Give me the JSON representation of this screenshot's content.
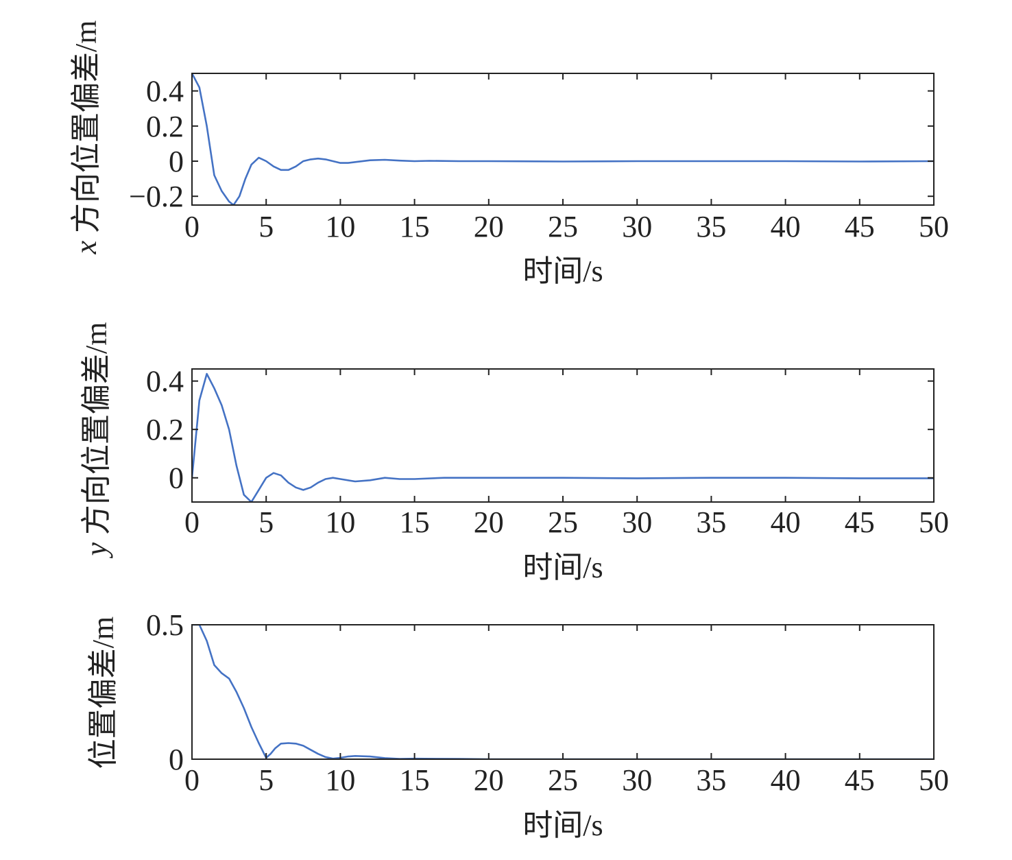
{
  "chart_data": [
    {
      "type": "line",
      "xlabel": "时间/s",
      "ylabel_var": "x",
      "ylabel": "方向位置偏差/m",
      "xlim": [
        0,
        50
      ],
      "ylim": [
        -0.25,
        0.5
      ],
      "xticks": [
        0,
        5,
        10,
        15,
        20,
        25,
        30,
        35,
        40,
        45,
        50
      ],
      "yticks": [
        -0.2,
        0,
        0.2,
        0.4
      ],
      "ytick_labels": [
        "−0.2",
        "0",
        "0.2",
        "0.4"
      ],
      "grid": false,
      "color": "#4472c4",
      "series": [
        {
          "x": [
            0,
            0.5,
            1,
            1.5,
            2,
            2.5,
            2.8,
            3.2,
            3.6,
            4,
            4.5,
            5,
            5.5,
            6,
            6.5,
            7,
            7.5,
            8,
            8.5,
            9,
            9.5,
            10,
            10.5,
            11,
            12,
            13,
            14,
            15,
            16,
            18,
            20,
            25,
            30,
            35,
            40,
            45,
            50
          ],
          "y": [
            0.5,
            0.42,
            0.2,
            -0.08,
            -0.17,
            -0.23,
            -0.25,
            -0.2,
            -0.1,
            -0.02,
            0.02,
            0.0,
            -0.03,
            -0.05,
            -0.05,
            -0.03,
            0.0,
            0.01,
            0.015,
            0.01,
            0.0,
            -0.01,
            -0.01,
            -0.005,
            0.005,
            0.008,
            0.003,
            0.0,
            0.002,
            0.0,
            0.0,
            -0.002,
            0.0,
            0.0,
            0.0,
            -0.002,
            0.0
          ]
        }
      ]
    },
    {
      "type": "line",
      "xlabel": "时间/s",
      "ylabel_var": "y",
      "ylabel": "方向位置偏差/m",
      "xlim": [
        0,
        50
      ],
      "ylim": [
        -0.1,
        0.45
      ],
      "xticks": [
        0,
        5,
        10,
        15,
        20,
        25,
        30,
        35,
        40,
        45,
        50
      ],
      "yticks": [
        0,
        0.2,
        0.4
      ],
      "ytick_labels": [
        "0",
        "0.2",
        "0.4"
      ],
      "grid": false,
      "color": "#4472c4",
      "series": [
        {
          "x": [
            0,
            0.5,
            1,
            1.5,
            2,
            2.5,
            3,
            3.5,
            4,
            4.5,
            5,
            5.5,
            6,
            6.5,
            7,
            7.5,
            8,
            8.5,
            9,
            9.5,
            10,
            11,
            12,
            13,
            14,
            15,
            17,
            20,
            25,
            30,
            35,
            40,
            45,
            50
          ],
          "y": [
            0,
            0.32,
            0.43,
            0.37,
            0.3,
            0.2,
            0.05,
            -0.07,
            -0.1,
            -0.05,
            0.0,
            0.02,
            0.01,
            -0.02,
            -0.04,
            -0.05,
            -0.04,
            -0.02,
            -0.005,
            0.0,
            -0.005,
            -0.015,
            -0.01,
            0.0,
            -0.005,
            -0.005,
            0.0,
            0.0,
            0.0,
            -0.002,
            0.0,
            0.0,
            -0.002,
            -0.002
          ]
        }
      ]
    },
    {
      "type": "line",
      "xlabel": "时间/s",
      "ylabel": "位置偏差/m",
      "xlim": [
        0,
        50
      ],
      "ylim": [
        0,
        0.5
      ],
      "xticks": [
        0,
        5,
        10,
        15,
        20,
        25,
        30,
        35,
        40,
        45,
        50
      ],
      "yticks": [
        0,
        0.5
      ],
      "ytick_labels": [
        "0",
        "0.5"
      ],
      "grid": false,
      "color": "#4472c4",
      "series": [
        {
          "x": [
            0,
            0.5,
            1,
            1.5,
            2,
            2.5,
            3,
            3.5,
            4,
            4.5,
            5,
            5.3,
            5.6,
            6,
            6.5,
            7,
            7.5,
            8,
            8.5,
            9,
            9.5,
            10,
            10.5,
            11,
            12,
            13,
            14,
            15,
            18,
            20,
            25,
            30,
            35,
            40,
            45,
            50
          ],
          "y": [
            0.5,
            0.5,
            0.44,
            0.35,
            0.32,
            0.3,
            0.25,
            0.19,
            0.12,
            0.06,
            0.005,
            0.02,
            0.04,
            0.058,
            0.06,
            0.058,
            0.05,
            0.035,
            0.02,
            0.008,
            0.002,
            0.005,
            0.01,
            0.012,
            0.01,
            0.004,
            0.001,
            0.002,
            0.001,
            0.0,
            0.0,
            0.0,
            0.0,
            0.0,
            0.0,
            0.0
          ]
        }
      ]
    }
  ]
}
